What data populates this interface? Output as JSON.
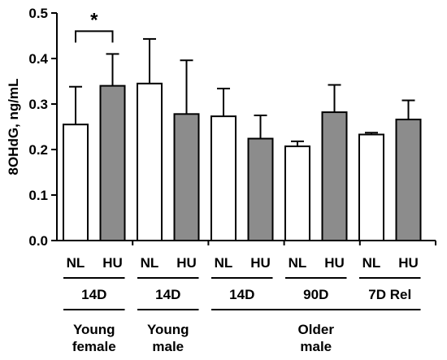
{
  "chart_data": {
    "type": "bar",
    "ylabel": "8OHdG, ng/mL",
    "ylim": [
      0,
      0.5
    ],
    "yticks": [
      "0.0",
      "0.1",
      "0.2",
      "0.3",
      "0.4",
      "0.5"
    ],
    "categories": [
      "NL",
      "HU",
      "NL",
      "HU",
      "NL",
      "HU",
      "NL",
      "HU",
      "NL",
      "HU"
    ],
    "values": [
      0.255,
      0.34,
      0.345,
      0.278,
      0.273,
      0.224,
      0.207,
      0.282,
      0.233,
      0.266
    ],
    "errors": [
      0.083,
      0.07,
      0.098,
      0.118,
      0.061,
      0.051,
      0.011,
      0.06,
      0.004,
      0.042
    ],
    "bar_colors": [
      "#ffffff",
      "#8c8c8c",
      "#ffffff",
      "#8c8c8c",
      "#ffffff",
      "#8c8c8c",
      "#ffffff",
      "#8c8c8c",
      "#ffffff",
      "#8c8c8c"
    ],
    "durations": [
      "14D",
      "14D",
      "14D",
      "90D",
      "7D Rel"
    ],
    "groups": [
      {
        "lines": [
          "Young",
          "female"
        ],
        "bars": [
          0,
          1
        ]
      },
      {
        "lines": [
          "Young",
          "male"
        ],
        "bars": [
          2,
          3
        ]
      },
      {
        "lines": [
          "Older",
          "male"
        ],
        "bars": [
          4,
          9
        ]
      }
    ],
    "significance": {
      "bars": [
        0,
        1
      ],
      "level": 0.46,
      "label": "*"
    }
  }
}
